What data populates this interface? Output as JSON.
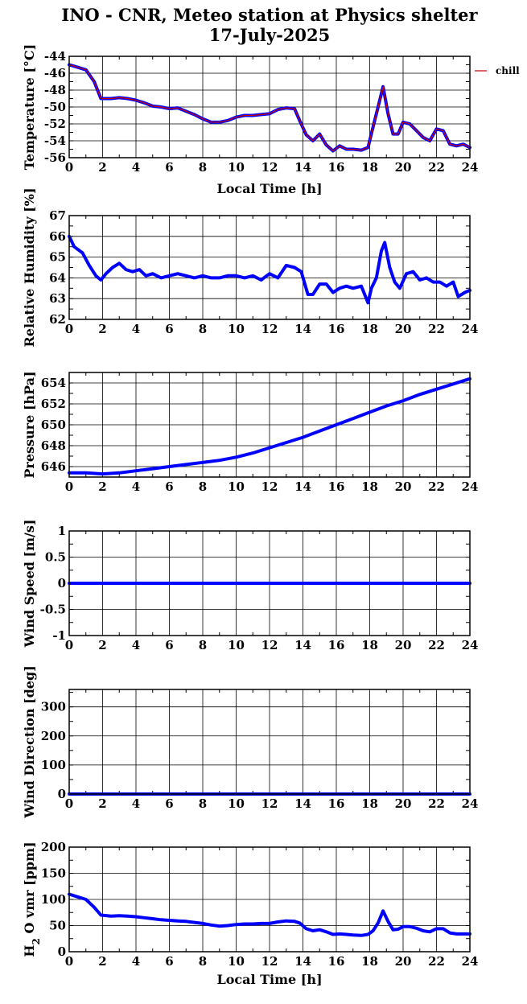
{
  "figure": {
    "title_line1": "INO - CNR, Meteo station at Physics shelter",
    "title_line2": "17-July-2025"
  },
  "colors": {
    "series": "#0000ff",
    "chill": "#cc0000",
    "grid": "#000000",
    "axis": "#000000"
  },
  "chart_data": [
    {
      "type": "line",
      "ylabel": "Temperature [°C]",
      "xlabel": "Local Time [h]",
      "xlim": [
        0,
        24
      ],
      "ylim": [
        -56,
        -44
      ],
      "xticks": [
        0,
        2,
        4,
        6,
        8,
        10,
        12,
        14,
        16,
        18,
        20,
        22,
        24
      ],
      "yticks": [
        -56,
        -54,
        -52,
        -50,
        -48,
        -46,
        -44
      ],
      "grid": true,
      "legend": {
        "entries": [
          "chill"
        ],
        "placement": "right"
      },
      "series": [
        {
          "color": "#0000ff",
          "x": [
            0,
            0.5,
            1,
            1.5,
            1.9,
            2.5,
            3,
            3.5,
            4,
            4.5,
            5,
            5.5,
            6,
            6.5,
            7,
            7.5,
            8,
            8.5,
            9,
            9.5,
            10,
            10.5,
            11,
            11.5,
            12,
            12.5,
            13,
            13.5,
            13.8,
            14.2,
            14.6,
            15,
            15.4,
            15.8,
            16.2,
            16.6,
            17,
            17.5,
            17.9,
            18.2,
            18.5,
            18.8,
            19.1,
            19.4,
            19.7,
            20,
            20.4,
            20.8,
            21.2,
            21.6,
            22,
            22.4,
            22.8,
            23.2,
            23.6,
            24
          ],
          "y": [
            -45,
            -45.3,
            -45.6,
            -47,
            -49,
            -49,
            -48.9,
            -49,
            -49.2,
            -49.5,
            -49.9,
            -50,
            -50.2,
            -50.1,
            -50.5,
            -50.9,
            -51.4,
            -51.8,
            -51.8,
            -51.6,
            -51.2,
            -51,
            -51,
            -50.9,
            -50.8,
            -50.3,
            -50.1,
            -50.2,
            -51.6,
            -53.3,
            -54,
            -53.2,
            -54.5,
            -55.2,
            -54.6,
            -55,
            -55,
            -55.1,
            -54.8,
            -52.4,
            -50,
            -47.6,
            -50.8,
            -53.2,
            -53.2,
            -51.8,
            -52,
            -52.8,
            -53.6,
            -54,
            -52.6,
            -52.8,
            -54.4,
            -54.6,
            -54.4,
            -54.8
          ]
        },
        {
          "name": "chill",
          "color": "#cc0000",
          "x": [
            0,
            0.5,
            1,
            1.5,
            1.9,
            2.5,
            3,
            3.5,
            4,
            4.5,
            5,
            5.5,
            6,
            6.5,
            7,
            7.5,
            8,
            8.5,
            9,
            9.5,
            10,
            10.5,
            11,
            11.5,
            12,
            12.5,
            13,
            13.5,
            13.8,
            14.2,
            14.6,
            15,
            15.4,
            15.8,
            16.2,
            16.6,
            17,
            17.5,
            17.9,
            18.2,
            18.5,
            18.8,
            19.1,
            19.4,
            19.7,
            20,
            20.4,
            20.8,
            21.2,
            21.6,
            22,
            22.4,
            22.8,
            23.2,
            23.6,
            24
          ],
          "y": [
            -45,
            -45.3,
            -45.6,
            -47,
            -49,
            -49,
            -48.9,
            -49,
            -49.2,
            -49.5,
            -49.9,
            -50,
            -50.2,
            -50.1,
            -50.5,
            -50.9,
            -51.4,
            -51.8,
            -51.8,
            -51.6,
            -51.2,
            -51,
            -51,
            -50.9,
            -50.8,
            -50.3,
            -50.1,
            -50.2,
            -51.6,
            -53.3,
            -54,
            -53.2,
            -54.5,
            -55.2,
            -54.6,
            -55,
            -55,
            -55.1,
            -54.8,
            -52.4,
            -50,
            -47.6,
            -50.8,
            -53.2,
            -53.2,
            -51.8,
            -52,
            -52.8,
            -53.6,
            -54,
            -52.6,
            -52.8,
            -54.4,
            -54.6,
            -54.4,
            -54.8
          ]
        }
      ]
    },
    {
      "type": "line",
      "ylabel": "Relative Humidity [%]",
      "xlim": [
        0,
        24
      ],
      "ylim": [
        62,
        67
      ],
      "xticks": [
        0,
        2,
        4,
        6,
        8,
        10,
        12,
        14,
        16,
        18,
        20,
        22,
        24
      ],
      "yticks": [
        62,
        63,
        64,
        65,
        66,
        67
      ],
      "grid": true,
      "series": [
        {
          "color": "#0000ff",
          "x": [
            0,
            0.3,
            0.8,
            1.2,
            1.6,
            1.9,
            2.2,
            2.6,
            3,
            3.4,
            3.8,
            4.2,
            4.6,
            5,
            5.5,
            6,
            6.5,
            7,
            7.5,
            8,
            8.5,
            9,
            9.5,
            10,
            10.5,
            11,
            11.5,
            12,
            12.5,
            13,
            13.5,
            13.9,
            14.3,
            14.6,
            15,
            15.4,
            15.8,
            16.2,
            16.6,
            17,
            17.5,
            17.9,
            18.1,
            18.4,
            18.7,
            18.9,
            19.2,
            19.5,
            19.8,
            20.2,
            20.6,
            21,
            21.4,
            21.8,
            22.2,
            22.6,
            23,
            23.3,
            23.7,
            24
          ],
          "y": [
            66,
            65.5,
            65.2,
            64.6,
            64.1,
            63.9,
            64.2,
            64.5,
            64.7,
            64.4,
            64.3,
            64.4,
            64.1,
            64.2,
            64,
            64.1,
            64.2,
            64.1,
            64,
            64.1,
            64,
            64,
            64.1,
            64.1,
            64,
            64.1,
            63.9,
            64.2,
            64,
            64.6,
            64.5,
            64.3,
            63.2,
            63.2,
            63.7,
            63.7,
            63.3,
            63.5,
            63.6,
            63.5,
            63.6,
            62.8,
            63.5,
            64,
            65.3,
            65.7,
            64.5,
            63.8,
            63.5,
            64.2,
            64.3,
            63.9,
            64,
            63.8,
            63.8,
            63.6,
            63.8,
            63.1,
            63.3,
            63.4
          ]
        }
      ]
    },
    {
      "type": "line",
      "ylabel": "Pressure [hPa]",
      "xlim": [
        0,
        24
      ],
      "ylim": [
        645,
        655
      ],
      "xticks": [
        0,
        2,
        4,
        6,
        8,
        10,
        12,
        14,
        16,
        18,
        20,
        22,
        24
      ],
      "yticks": [
        646,
        648,
        650,
        652,
        654
      ],
      "grid": true,
      "series": [
        {
          "color": "#0000ff",
          "x": [
            0,
            1,
            2,
            3,
            4,
            5,
            6,
            7,
            8,
            9,
            10,
            11,
            12,
            13,
            14,
            15,
            16,
            17,
            18,
            19,
            20,
            21,
            22,
            23,
            24
          ],
          "y": [
            645.4,
            645.4,
            645.3,
            645.4,
            645.6,
            645.8,
            646,
            646.2,
            646.4,
            646.6,
            646.9,
            647.3,
            647.8,
            648.3,
            648.8,
            649.4,
            650,
            650.6,
            651.2,
            651.8,
            652.3,
            652.9,
            653.4,
            653.9,
            654.4
          ]
        }
      ]
    },
    {
      "type": "line",
      "ylabel": "Wind Speed [m/s]",
      "xlim": [
        0,
        24
      ],
      "ylim": [
        -1,
        1
      ],
      "xticks": [
        0,
        2,
        4,
        6,
        8,
        10,
        12,
        14,
        16,
        18,
        20,
        22,
        24
      ],
      "yticks": [
        -1,
        -0.5,
        0,
        0.5,
        1
      ],
      "grid": true,
      "series": [
        {
          "color": "#0000ff",
          "x": [
            0,
            24
          ],
          "y": [
            0,
            0
          ]
        }
      ]
    },
    {
      "type": "line",
      "ylabel": "Wind Direction [deg]",
      "xlim": [
        0,
        24
      ],
      "ylim": [
        0,
        360
      ],
      "xticks": [
        0,
        2,
        4,
        6,
        8,
        10,
        12,
        14,
        16,
        18,
        20,
        22,
        24
      ],
      "yticks": [
        0,
        100,
        200,
        300
      ],
      "grid": true,
      "series": [
        {
          "color": "#0000ff",
          "x": [
            0,
            24
          ],
          "y": [
            0,
            0
          ]
        }
      ]
    },
    {
      "type": "line",
      "ylabel_main": "H",
      "ylabel_sub": "2",
      "ylabel_rest": " O vmr [ppm]",
      "xlabel": "Local Time [h]",
      "xlim": [
        0,
        24
      ],
      "ylim": [
        0,
        200
      ],
      "xticks": [
        0,
        2,
        4,
        6,
        8,
        10,
        12,
        14,
        16,
        18,
        20,
        22,
        24
      ],
      "yticks": [
        0,
        50,
        100,
        150,
        200
      ],
      "grid": true,
      "series": [
        {
          "color": "#0000ff",
          "x": [
            0,
            0.5,
            1,
            1.5,
            1.9,
            2.5,
            3,
            3.5,
            4,
            4.5,
            5,
            5.5,
            6,
            6.5,
            7,
            7.5,
            8,
            8.5,
            9,
            9.5,
            10,
            10.5,
            11,
            11.5,
            12,
            12.5,
            13,
            13.5,
            13.8,
            14.2,
            14.6,
            15,
            15.4,
            15.8,
            16.2,
            16.6,
            17,
            17.5,
            17.9,
            18.2,
            18.5,
            18.8,
            19.1,
            19.4,
            19.7,
            20,
            20.4,
            20.8,
            21.2,
            21.6,
            22,
            22.4,
            22.8,
            23.2,
            23.6,
            24
          ],
          "y": [
            110,
            105,
            100,
            85,
            70,
            68,
            69,
            68,
            67,
            65,
            63,
            61,
            60,
            59,
            58,
            56,
            54,
            51,
            49,
            50,
            52,
            53,
            53,
            54,
            54,
            57,
            59,
            58,
            55,
            44,
            40,
            42,
            38,
            33,
            34,
            33,
            32,
            31,
            33,
            40,
            55,
            78,
            58,
            42,
            43,
            48,
            48,
            45,
            40,
            38,
            44,
            44,
            36,
            34,
            34,
            34
          ]
        }
      ]
    }
  ]
}
